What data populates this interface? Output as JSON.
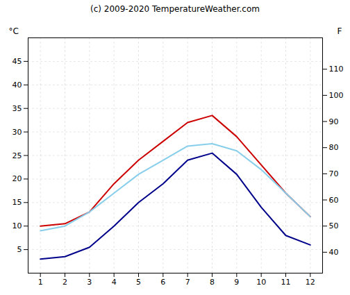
{
  "chart_data": {
    "type": "line",
    "title": "(c) 2009-2020 TemperatureWeather.com",
    "ylabel": "°C",
    "y2label": "F",
    "x": [
      1,
      2,
      3,
      4,
      5,
      6,
      7,
      8,
      9,
      10,
      11,
      12
    ],
    "series": [
      {
        "color": "#cc0000",
        "values": [
          10,
          10.5,
          13,
          19,
          24,
          28,
          32,
          33.5,
          29,
          23,
          17,
          12
        ]
      },
      {
        "color": "#00008b",
        "values": [
          3,
          3.5,
          5.5,
          10,
          15,
          19,
          24,
          25.5,
          21,
          14,
          8,
          6
        ]
      },
      {
        "color": "#87ceeb",
        "values": [
          9,
          10,
          13,
          17,
          21,
          24,
          27,
          27.5,
          26,
          22,
          17,
          12
        ]
      }
    ],
    "xlim": [
      0.5,
      12.5
    ],
    "xticks": [
      1,
      2,
      3,
      4,
      5,
      6,
      7,
      8,
      9,
      10,
      11,
      12
    ],
    "ylim": [
      0,
      50
    ],
    "yticks": [
      5,
      10,
      15,
      20,
      25,
      30,
      35,
      40,
      45
    ],
    "y2lim": [
      32,
      122
    ],
    "y2ticks": [
      40,
      50,
      60,
      70,
      80,
      90,
      100,
      110
    ],
    "grid": true
  }
}
